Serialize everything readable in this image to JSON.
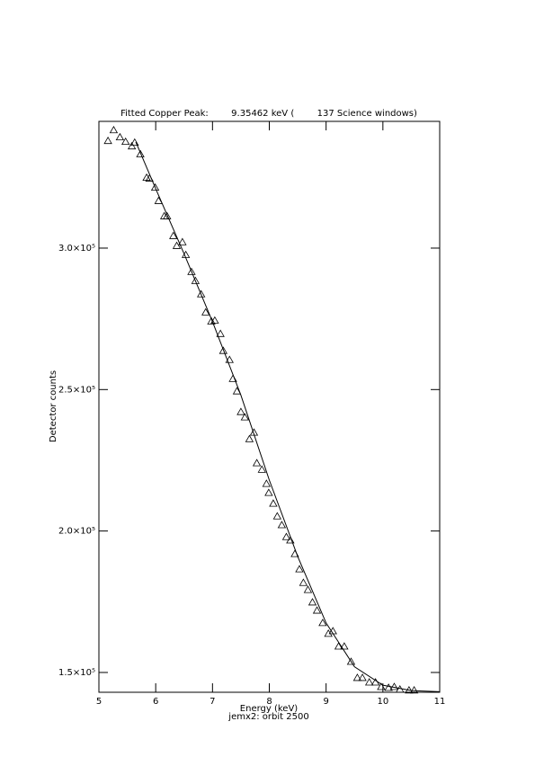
{
  "chart_data": {
    "type": "scatter",
    "title": "Fitted Copper Peak:        9.35462 keV (        137 Science windows)",
    "xlabel": "Energy (keV)",
    "subtitle": "jemx2: orbit 2500",
    "ylabel": "Detector counts",
    "xlim": [
      5,
      11
    ],
    "ylim": [
      143000,
      344800
    ],
    "xticks": [
      5,
      6,
      7,
      8,
      9,
      10,
      11
    ],
    "yticks": [
      {
        "value": 150000,
        "label": "1.5×10⁵"
      },
      {
        "value": 200000,
        "label": "2.0×10⁵"
      },
      {
        "value": 250000,
        "label": "2.5×10⁵"
      },
      {
        "value": 300000,
        "label": "3.0×10⁵"
      }
    ],
    "color": "#000000",
    "x": [
      5.16,
      5.26,
      5.37,
      5.47,
      5.58,
      5.63,
      5.73,
      5.84,
      5.89,
      5.99,
      6.05,
      6.15,
      6.2,
      6.31,
      6.37,
      6.47,
      6.53,
      6.63,
      6.7,
      6.8,
      6.88,
      6.98,
      7.04,
      7.14,
      7.19,
      7.3,
      7.36,
      7.43,
      7.5,
      7.57,
      7.65,
      7.73,
      7.78,
      7.87,
      7.95,
      7.99,
      8.07,
      8.14,
      8.22,
      8.3,
      8.37,
      8.45,
      8.53,
      8.6,
      8.68,
      8.76,
      8.84,
      8.94,
      9.04,
      9.12,
      9.22,
      9.32,
      9.44,
      9.55,
      9.64,
      9.76,
      9.87,
      9.97,
      10.1,
      10.2,
      10.3,
      10.46,
      10.55
    ],
    "values": [
      337900,
      341700,
      339200,
      337600,
      336000,
      337300,
      333200,
      324900,
      324600,
      321400,
      316700,
      311300,
      311300,
      304300,
      300800,
      302100,
      297600,
      291600,
      288400,
      283700,
      277300,
      274100,
      274400,
      269700,
      263700,
      260500,
      253800,
      249400,
      242100,
      240200,
      232500,
      234800,
      224000,
      221700,
      216700,
      213500,
      209700,
      205200,
      202100,
      197900,
      196700,
      191900,
      186500,
      181700,
      179200,
      174800,
      171900,
      167500,
      163700,
      164600,
      159200,
      159200,
      153800,
      148100,
      148100,
      146500,
      146500,
      144900,
      144600,
      144900,
      144000,
      143700,
      143700
    ],
    "fit": {
      "x": [
        5.65,
        6,
        6.5,
        7,
        7.5,
        8,
        8.5,
        9,
        9.5,
        10,
        10.5,
        11
      ],
      "values": [
        337500,
        321000,
        298000,
        274000,
        248000,
        218000,
        191000,
        167500,
        152000,
        145500,
        143600,
        143200
      ]
    }
  }
}
